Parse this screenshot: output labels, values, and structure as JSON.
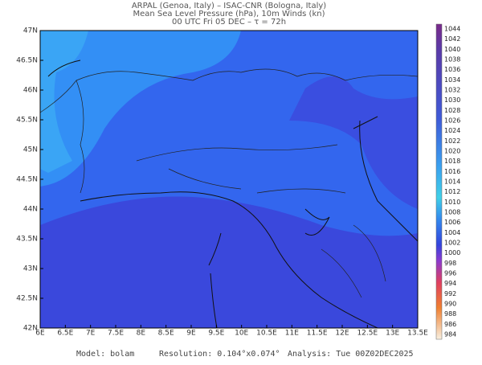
{
  "header": {
    "line1": "ARPAL (Genoa, Italy)  –  ISAC-CNR (Bologna, Italy)",
    "line2": "Mean Sea Level Pressure (hPa), 10m Winds (kn)",
    "line3": "00 UTC Fri 05 DEC  –  τ = 72h"
  },
  "map": {
    "lat_labels": [
      "47N",
      "46.5N",
      "46N",
      "45.5N",
      "45N",
      "44.5N",
      "44N",
      "43.5N",
      "43N",
      "42.5N",
      "42N"
    ],
    "lon_labels": [
      "6E",
      "6.5E",
      "7E",
      "7.5E",
      "8E",
      "8.5E",
      "9E",
      "9.5E",
      "10E",
      "10.5E",
      "11E",
      "11.5E",
      "12E",
      "12.5E",
      "13E",
      "13.5E"
    ]
  },
  "colorbar": {
    "labels": [
      1044,
      1042,
      1040,
      1038,
      1036,
      1034,
      1032,
      1030,
      1028,
      1026,
      1024,
      1022,
      1020,
      1018,
      1016,
      1014,
      1012,
      1010,
      1008,
      1006,
      1004,
      1002,
      1000,
      998,
      996,
      994,
      992,
      990,
      988,
      986,
      984
    ]
  },
  "footer": {
    "model": "Model: bolam",
    "resolution": "Resolution: 0.104°x0.074°",
    "analysis": "Analysis: Tue 00Z02DEC2025"
  }
}
